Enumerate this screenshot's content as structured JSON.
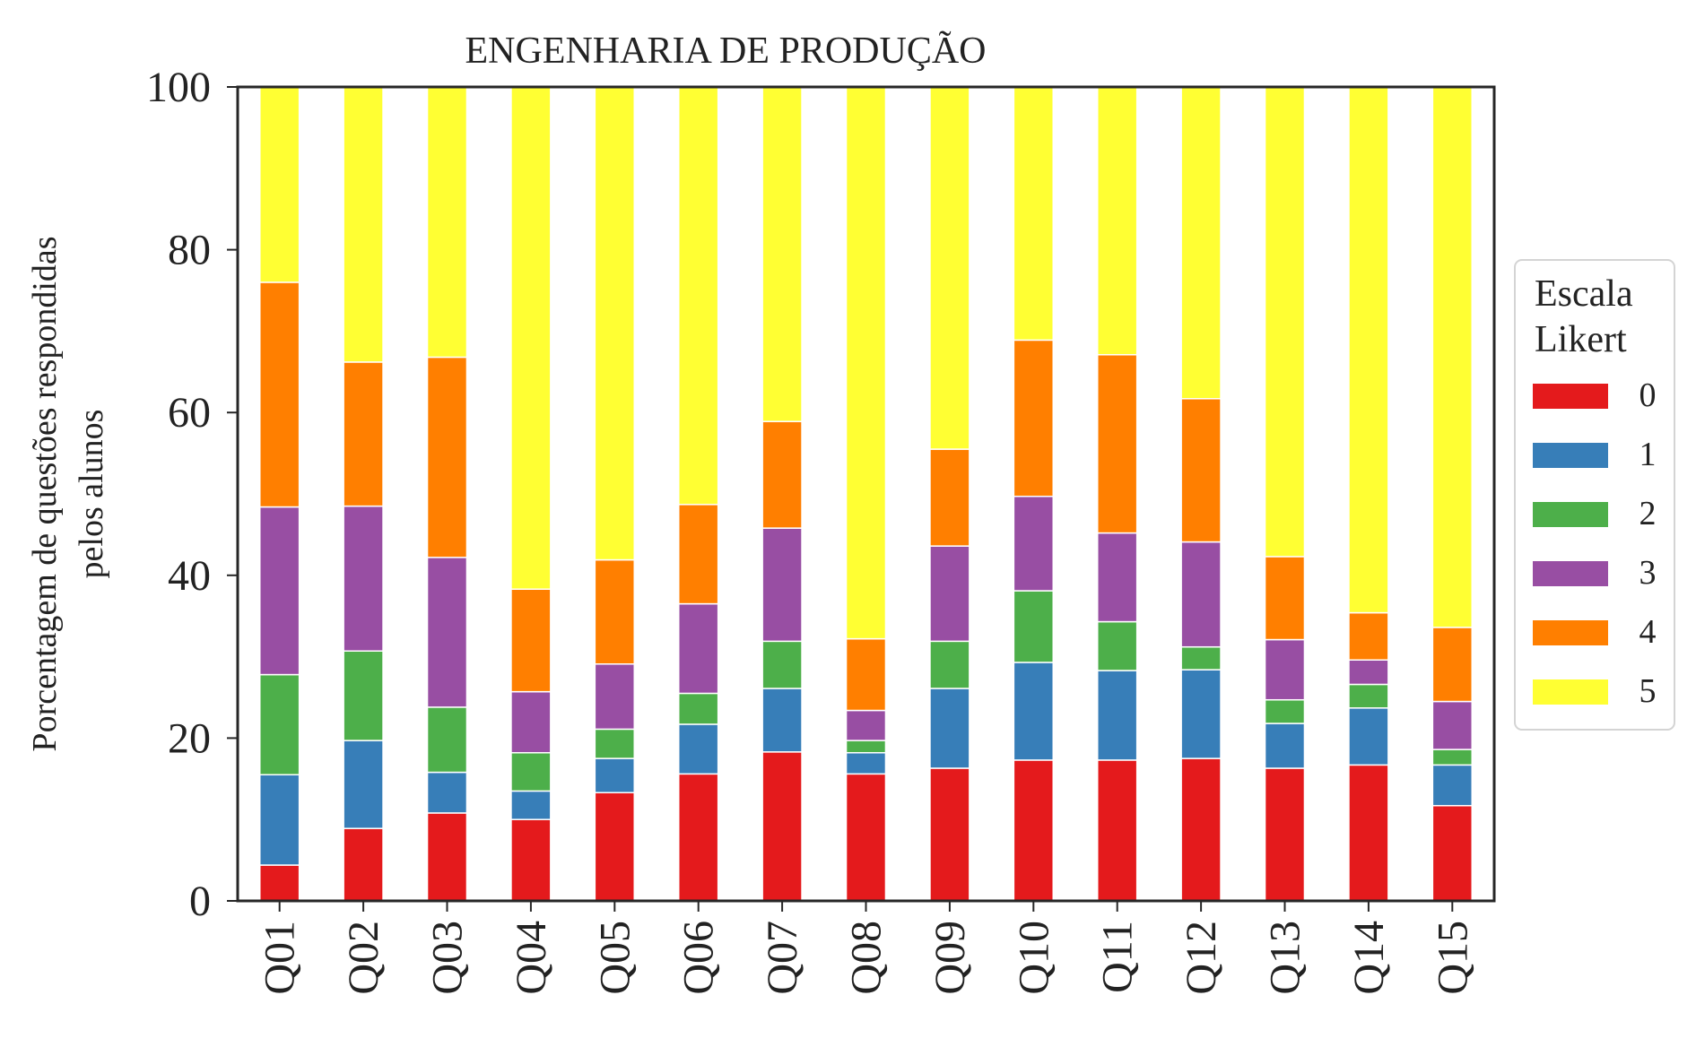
{
  "chart_data": {
    "type": "bar",
    "stacked": true,
    "title": "ENGENHARIA DE PRODUÇÃO",
    "ylabel_lines": [
      "Porcentagem de questões respondidas",
      "pelos alunos"
    ],
    "xlabel": "",
    "ylim": [
      0,
      100
    ],
    "yticks": [
      "0",
      "20",
      "40",
      "60",
      "80",
      "100"
    ],
    "categories": [
      "Q01",
      "Q02",
      "Q03",
      "Q04",
      "Q05",
      "Q06",
      "Q07",
      "Q08",
      "Q09",
      "Q10",
      "Q11",
      "Q12",
      "Q13",
      "Q14",
      "Q15"
    ],
    "legend": {
      "title_lines": [
        "Escala",
        "Likert"
      ],
      "placement": "right"
    },
    "grid": false,
    "series": [
      {
        "name": "0",
        "color": "#e41a1c",
        "values": [
          4.4,
          8.9,
          10.8,
          10.0,
          13.3,
          15.6,
          18.3,
          15.6,
          16.3,
          17.3,
          17.3,
          17.5,
          16.3,
          16.7,
          11.7
        ]
      },
      {
        "name": "1",
        "color": "#377eb8",
        "values": [
          11.1,
          10.8,
          5.0,
          3.5,
          4.2,
          6.1,
          7.8,
          2.6,
          9.8,
          12.0,
          11.0,
          10.9,
          5.5,
          7.0,
          5.0
        ]
      },
      {
        "name": "2",
        "color": "#4daf4a",
        "values": [
          12.3,
          11.0,
          8.0,
          4.7,
          3.6,
          3.8,
          5.8,
          1.5,
          5.8,
          8.8,
          6.0,
          2.8,
          2.9,
          2.9,
          1.9
        ]
      },
      {
        "name": "3",
        "color": "#984ea3",
        "values": [
          20.6,
          17.8,
          18.4,
          7.5,
          8.0,
          11.0,
          13.9,
          3.7,
          11.7,
          11.6,
          10.9,
          12.9,
          7.4,
          3.0,
          5.9
        ]
      },
      {
        "name": "4",
        "color": "#ff7f00",
        "values": [
          27.6,
          17.7,
          24.6,
          12.6,
          12.8,
          12.2,
          13.1,
          8.8,
          11.9,
          19.2,
          21.9,
          17.6,
          10.2,
          5.8,
          9.1
        ]
      },
      {
        "name": "5",
        "color": "#ffff33",
        "values": [
          24.0,
          33.8,
          33.2,
          61.7,
          58.1,
          51.3,
          41.1,
          67.8,
          44.5,
          31.1,
          32.9,
          38.3,
          57.7,
          64.6,
          66.4
        ]
      }
    ]
  }
}
